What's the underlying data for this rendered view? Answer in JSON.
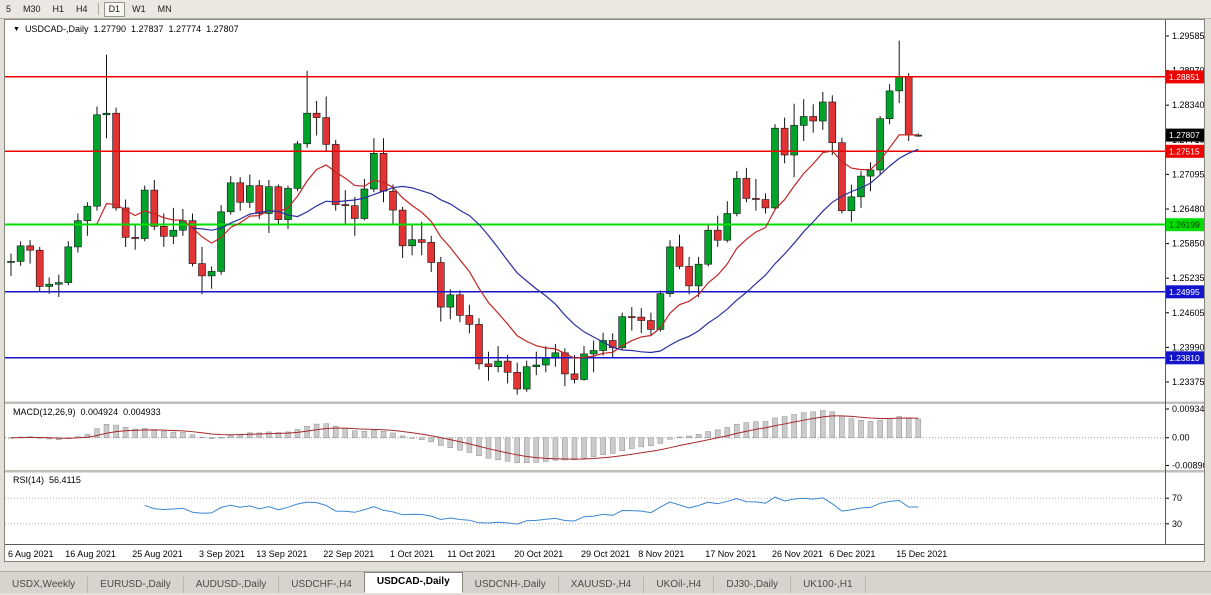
{
  "toolbar": {
    "timeframes": [
      {
        "label": "5"
      },
      {
        "label": "M30"
      },
      {
        "label": "H1"
      },
      {
        "label": "H4"
      },
      {
        "label": "D1",
        "active": true
      },
      {
        "label": "W1"
      },
      {
        "label": "MN"
      }
    ]
  },
  "legend": {
    "marker": "▼",
    "title": "USDCAD-,Daily",
    "open": "1.27790",
    "high": "1.27837",
    "low": "1.27774",
    "close": "1.27807"
  },
  "tabs": [
    {
      "label": "USDX,Weekly"
    },
    {
      "label": "EURUSD-,Daily"
    },
    {
      "label": "AUDUSD-,Daily"
    },
    {
      "label": "USDCHF-,H4"
    },
    {
      "label": "USDCAD-,Daily",
      "active": true
    },
    {
      "label": "USDCNH-,Daily"
    },
    {
      "label": "XAUUSD-,H4"
    },
    {
      "label": "UKOil-,H4"
    },
    {
      "label": "DJ30-,Daily"
    },
    {
      "label": "UK100-,H1"
    }
  ],
  "chart_data": {
    "type": "candlestick",
    "symbol": "USDCAD-",
    "timeframe": "Daily",
    "current_bar": {
      "open": 1.2779,
      "high": 1.27837,
      "low": 1.27774,
      "close": 1.27807
    },
    "colors": {
      "up": "#00a32a",
      "down": "#e23434",
      "outline": "#141414"
    },
    "ylim": [
      1.23035,
      1.29872
    ],
    "y_axis": {
      "ticks": [
        "1.29585",
        "1.28970",
        "1.28340",
        "1.27710",
        "1.27095",
        "1.26480",
        "1.25850",
        "1.25235",
        "1.24605",
        "1.23990",
        "1.23375"
      ]
    },
    "hlines": [
      {
        "price": 1.28851,
        "label": "1.28851",
        "color": "#ee0000",
        "text_color": "#ffffff",
        "width": 1.6
      },
      {
        "price": 1.27515,
        "label": "1.27515",
        "color": "#ee0000",
        "text_color": "#ffffff",
        "width": 1.6
      },
      {
        "price": 1.26199,
        "label": "1.26199",
        "color": "#00dd00",
        "text_color": "#063306",
        "width": 2
      },
      {
        "price": 1.24995,
        "label": "1.24995",
        "color": "#1414cc",
        "text_color": "#ffffff",
        "width": 1.6
      },
      {
        "price": 1.2381,
        "label": "1.23810",
        "color": "#1414cc",
        "text_color": "#ffffff",
        "width": 1.6
      }
    ],
    "current_price": {
      "value": 1.27807,
      "label": "1.27807",
      "bg": "#000000",
      "text_color": "#ffffff"
    },
    "moving_averages": [
      {
        "type": "ema",
        "period": 10,
        "color": "#c22525"
      },
      {
        "type": "sma",
        "period": 20,
        "color": "#2b2f9e"
      }
    ],
    "x_labels": [
      {
        "i": 0,
        "t": "6 Aug 2021"
      },
      {
        "i": 6,
        "t": "16 Aug 2021"
      },
      {
        "i": 13,
        "t": "25 Aug 2021"
      },
      {
        "i": 20,
        "t": "3 Sep 2021"
      },
      {
        "i": 26,
        "t": "13 Sep 2021"
      },
      {
        "i": 33,
        "t": "22 Sep 2021"
      },
      {
        "i": 40,
        "t": "1 Oct 2021"
      },
      {
        "i": 46,
        "t": "11 Oct 2021"
      },
      {
        "i": 53,
        "t": "20 Oct 2021"
      },
      {
        "i": 60,
        "t": "29 Oct 2021"
      },
      {
        "i": 66,
        "t": "8 Nov 2021"
      },
      {
        "i": 73,
        "t": "17 Nov 2021"
      },
      {
        "i": 80,
        "t": "26 Nov 2021"
      },
      {
        "i": 86,
        "t": "6 Dec 2021"
      },
      {
        "i": 93,
        "t": "15 Dec 2021"
      }
    ],
    "candles": [
      [
        1.2553,
        1.2568,
        1.2528,
        1.2554
      ],
      [
        1.2554,
        1.259,
        1.2546,
        1.2582
      ],
      [
        1.2582,
        1.2592,
        1.255,
        1.2574
      ],
      [
        1.2574,
        1.258,
        1.25,
        1.2509
      ],
      [
        1.2509,
        1.2525,
        1.2496,
        1.2513
      ],
      [
        1.2513,
        1.253,
        1.249,
        1.2516
      ],
      [
        1.2516,
        1.259,
        1.2511,
        1.258
      ],
      [
        1.258,
        1.264,
        1.257,
        1.2627
      ],
      [
        1.2627,
        1.266,
        1.26,
        1.2653
      ],
      [
        1.2653,
        1.2832,
        1.2645,
        1.2817
      ],
      [
        1.2817,
        1.2925,
        1.2775,
        1.282
      ],
      [
        1.282,
        1.283,
        1.2645,
        1.265
      ],
      [
        1.265,
        1.2665,
        1.258,
        1.2597
      ],
      [
        1.2597,
        1.262,
        1.2575,
        1.2595
      ],
      [
        1.2595,
        1.269,
        1.259,
        1.2682
      ],
      [
        1.2682,
        1.27,
        1.261,
        1.2617
      ],
      [
        1.2617,
        1.264,
        1.258,
        1.2599
      ],
      [
        1.2599,
        1.265,
        1.2585,
        1.261
      ],
      [
        1.261,
        1.2648,
        1.26,
        1.2627
      ],
      [
        1.2627,
        1.264,
        1.2545,
        1.255
      ],
      [
        1.255,
        1.258,
        1.2495,
        1.2528
      ],
      [
        1.2528,
        1.2545,
        1.2505,
        1.2536
      ],
      [
        1.2536,
        1.2655,
        1.253,
        1.2643
      ],
      [
        1.2643,
        1.2707,
        1.2638,
        1.2695
      ],
      [
        1.2695,
        1.2705,
        1.2645,
        1.266
      ],
      [
        1.266,
        1.271,
        1.265,
        1.269
      ],
      [
        1.269,
        1.27,
        1.263,
        1.264
      ],
      [
        1.264,
        1.27,
        1.2605,
        1.2688
      ],
      [
        1.2688,
        1.2692,
        1.262,
        1.2629
      ],
      [
        1.2629,
        1.269,
        1.2612,
        1.2685
      ],
      [
        1.2685,
        1.277,
        1.268,
        1.2765
      ],
      [
        1.2765,
        1.2896,
        1.2758,
        1.282
      ],
      [
        1.282,
        1.2842,
        1.278,
        1.2812
      ],
      [
        1.2812,
        1.285,
        1.2752,
        1.2764
      ],
      [
        1.2764,
        1.2772,
        1.2645,
        1.2656
      ],
      [
        1.2656,
        1.2682,
        1.262,
        1.2654
      ],
      [
        1.2654,
        1.267,
        1.26,
        1.2631
      ],
      [
        1.2631,
        1.2702,
        1.2628,
        1.2684
      ],
      [
        1.2684,
        1.2775,
        1.2678,
        1.2748
      ],
      [
        1.2748,
        1.2775,
        1.266,
        1.268
      ],
      [
        1.268,
        1.2692,
        1.262,
        1.2646
      ],
      [
        1.2646,
        1.2652,
        1.256,
        1.2582
      ],
      [
        1.2582,
        1.2622,
        1.2565,
        1.2593
      ],
      [
        1.2593,
        1.2625,
        1.2565,
        1.2588
      ],
      [
        1.2588,
        1.26,
        1.2535,
        1.2552
      ],
      [
        1.2552,
        1.2562,
        1.2446,
        1.2472
      ],
      [
        1.2472,
        1.2504,
        1.245,
        1.2494
      ],
      [
        1.2494,
        1.2502,
        1.2445,
        1.2457
      ],
      [
        1.2457,
        1.2476,
        1.2425,
        1.2441
      ],
      [
        1.2441,
        1.2452,
        1.236,
        1.237
      ],
      [
        1.237,
        1.2392,
        1.234,
        1.2365
      ],
      [
        1.2365,
        1.2402,
        1.2355,
        1.2375
      ],
      [
        1.2375,
        1.2386,
        1.2335,
        1.2355
      ],
      [
        1.2355,
        1.2372,
        1.2315,
        1.2325
      ],
      [
        1.2325,
        1.2376,
        1.232,
        1.2365
      ],
      [
        1.2365,
        1.2392,
        1.235,
        1.2368
      ],
      [
        1.2368,
        1.2402,
        1.2355,
        1.238
      ],
      [
        1.238,
        1.2406,
        1.2365,
        1.239
      ],
      [
        1.239,
        1.2398,
        1.233,
        1.2352
      ],
      [
        1.2352,
        1.2386,
        1.2335,
        1.2342
      ],
      [
        1.2342,
        1.2402,
        1.234,
        1.2388
      ],
      [
        1.2388,
        1.2412,
        1.2355,
        1.2394
      ],
      [
        1.2394,
        1.2426,
        1.2385,
        1.2412
      ],
      [
        1.2412,
        1.2425,
        1.238,
        1.2399
      ],
      [
        1.2399,
        1.2462,
        1.2395,
        1.2455
      ],
      [
        1.2455,
        1.2472,
        1.243,
        1.2454
      ],
      [
        1.2454,
        1.247,
        1.2425,
        1.2448
      ],
      [
        1.2448,
        1.2462,
        1.242,
        1.2432
      ],
      [
        1.2432,
        1.2502,
        1.2428,
        1.2496
      ],
      [
        1.2496,
        1.2592,
        1.249,
        1.258
      ],
      [
        1.258,
        1.2602,
        1.254,
        1.2545
      ],
      [
        1.2545,
        1.2562,
        1.2495,
        1.251
      ],
      [
        1.251,
        1.2562,
        1.249,
        1.2549
      ],
      [
        1.2549,
        1.2622,
        1.2545,
        1.261
      ],
      [
        1.261,
        1.2636,
        1.258,
        1.2592
      ],
      [
        1.2592,
        1.2662,
        1.2588,
        1.264
      ],
      [
        1.264,
        1.2716,
        1.2635,
        1.2703
      ],
      [
        1.2703,
        1.2722,
        1.266,
        1.2667
      ],
      [
        1.2667,
        1.2702,
        1.2645,
        1.2665
      ],
      [
        1.2665,
        1.2676,
        1.264,
        1.265
      ],
      [
        1.265,
        1.28,
        1.2647,
        1.2793
      ],
      [
        1.2793,
        1.2812,
        1.273,
        1.2745
      ],
      [
        1.2745,
        1.2837,
        1.2705,
        1.2798
      ],
      [
        1.2798,
        1.2845,
        1.277,
        1.2814
      ],
      [
        1.2814,
        1.2836,
        1.2785,
        1.2806
      ],
      [
        1.2806,
        1.2858,
        1.279,
        1.284
      ],
      [
        1.284,
        1.2852,
        1.2745,
        1.2767
      ],
      [
        1.2767,
        1.2776,
        1.264,
        1.2645
      ],
      [
        1.2645,
        1.2692,
        1.2625,
        1.267
      ],
      [
        1.267,
        1.2716,
        1.265,
        1.2707
      ],
      [
        1.2707,
        1.2732,
        1.268,
        1.2718
      ],
      [
        1.2718,
        1.2815,
        1.271,
        1.281
      ],
      [
        1.281,
        1.2872,
        1.28,
        1.286
      ],
      [
        1.286,
        1.295,
        1.2838,
        1.2885
      ],
      [
        1.2885,
        1.2892,
        1.277,
        1.2781
      ],
      [
        1.2779,
        1.27837,
        1.27774,
        1.27807
      ]
    ],
    "macd": {
      "label": "MACD(12,26,9)",
      "value_main": "0.004924",
      "value_signal": "0.004933",
      "fast": 12,
      "slow": 26,
      "signal": 9,
      "ticks": [
        "0.009345",
        "0.00",
        "-0.008902"
      ],
      "hist_color": "#cbcbcb",
      "hist_border": "#8f8f8f",
      "signal_color": "#a52a2a"
    },
    "rsi": {
      "label": "RSI(14)",
      "value": "56.4115",
      "period": 14,
      "levels": [
        70,
        30
      ],
      "color": "#3c86d2",
      "level_color": "#b3b3b3"
    }
  }
}
